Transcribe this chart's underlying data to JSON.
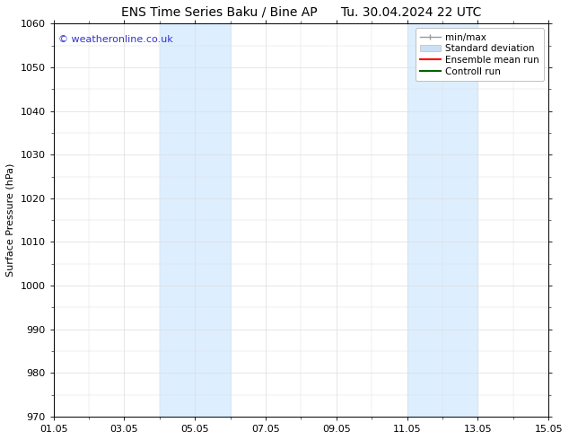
{
  "title_left": "ENS Time Series Baku / Bine AP",
  "title_right": "Tu. 30.04.2024 22 UTC",
  "ylabel": "Surface Pressure (hPa)",
  "ylim": [
    970,
    1060
  ],
  "yticks": [
    970,
    980,
    990,
    1000,
    1010,
    1020,
    1030,
    1040,
    1050,
    1060
  ],
  "xlim": [
    0,
    14
  ],
  "xtick_labels": [
    "01.05",
    "03.05",
    "05.05",
    "07.05",
    "09.05",
    "11.05",
    "13.05",
    "15.05"
  ],
  "xtick_positions": [
    0,
    2,
    4,
    6,
    8,
    10,
    12,
    14
  ],
  "shaded_regions": [
    {
      "x_start": 3.0,
      "x_end": 5.0,
      "color": "#ddeeff"
    },
    {
      "x_start": 10.0,
      "x_end": 12.0,
      "color": "#ddeeff"
    }
  ],
  "watermark_text": "© weatheronline.co.uk",
  "watermark_color": "#3333cc",
  "bg_color": "#ffffff",
  "plot_bg_color": "#ffffff",
  "grid_color": "#dddddd",
  "tick_color": "#000000",
  "title_fontsize": 10,
  "axis_label_fontsize": 8,
  "tick_fontsize": 8,
  "legend_fontsize": 7.5,
  "legend_gray": "#999999",
  "legend_blue": "#cce0f5",
  "legend_red": "#ff0000",
  "legend_green": "#006600"
}
